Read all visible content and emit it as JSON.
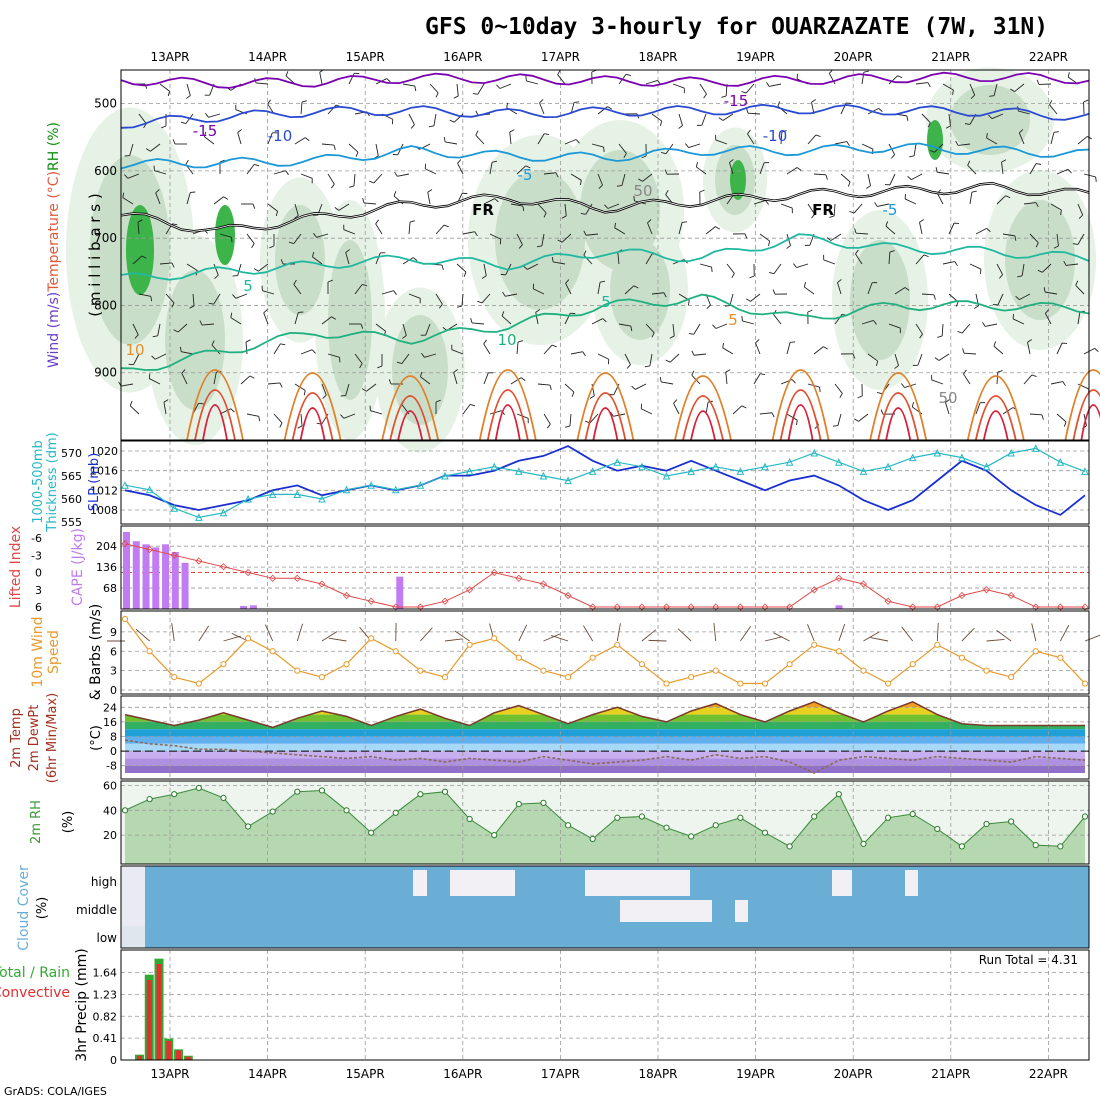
{
  "title": "GFS 0~10day 3-hourly for OUARZAZATE (7W, 31N)",
  "footer": "GrADS: COLA/IGES",
  "colors": {
    "temperature_cold": "#7a00b0",
    "temperature_warm": "#e0203a",
    "freezing_line": "#000000",
    "rh_fill": "#3cb44a",
    "slp": "#1a2fd0",
    "thickness": "#26b8c4",
    "cape": "#c07cf0",
    "lifted_index": "#e04848",
    "wind10m": "#e89a2c",
    "rh2m": "#5ab25a",
    "cloud": "#6aaed6",
    "precip_total": "#34a834",
    "precip_conv": "#e03030"
  },
  "chart_data": [
    {
      "panel": "upper-air",
      "type": "contour",
      "ylabel_parts": [
        "Wind",
        " (m/s)",
        "Temperature",
        " (°C)",
        "RH",
        " (%)"
      ],
      "ylabel_units": "( m i l l i b a r s )",
      "yticks": [
        "500",
        "600",
        "700",
        "800",
        "900"
      ],
      "ylim": [
        1000,
        450
      ],
      "x": [
        "13APR",
        "14APR",
        "15APR",
        "16APR",
        "17APR",
        "18APR",
        "19APR",
        "20APR",
        "21APR",
        "22APR"
      ],
      "contour_labels": [
        "-15",
        "-15",
        "-10",
        "-10",
        "-5",
        "FR",
        "FR",
        "-5",
        "5",
        "5",
        "10",
        "5",
        "50",
        "50",
        "10"
      ],
      "isotherms": [
        {
          "label": "-15",
          "values_hpa": [
            465,
            470,
            468,
            462,
            463,
            466,
            468,
            465,
            462,
            460,
            464
          ]
        },
        {
          "label": "-10",
          "values_hpa": [
            530,
            520,
            512,
            510,
            515,
            512,
            510,
            508,
            510,
            512,
            520
          ]
        },
        {
          "label": "-5",
          "values_hpa": [
            590,
            588,
            585,
            570,
            578,
            580,
            570,
            570,
            565,
            570,
            575
          ]
        },
        {
          "label": "0",
          "values_hpa": [
            665,
            690,
            670,
            650,
            640,
            655,
            645,
            635,
            630,
            625,
            635
          ]
        },
        {
          "label": "5",
          "values_hpa": [
            760,
            750,
            740,
            730,
            740,
            720,
            730,
            700,
            715,
            720,
            730
          ]
        },
        {
          "label": "10",
          "values_hpa": [
            900,
            870,
            840,
            850,
            830,
            800,
            790,
            820,
            800,
            800,
            805
          ]
        }
      ]
    },
    {
      "panel": "sfc-pressure",
      "type": "line",
      "ylabel_left": [
        "1000-500mb",
        "Thickness (dm)"
      ],
      "ylabel_right": "SLP (mb)",
      "yticks_left": [
        "570",
        "565",
        "560",
        "555"
      ],
      "yticks_right": [
        "1020",
        "1016",
        "1012",
        "1008"
      ],
      "series": [
        {
          "name": "SLP (mb)",
          "values": [
            1012,
            1011,
            1009,
            1008,
            1009,
            1010,
            1012,
            1013,
            1011,
            1012,
            1013,
            1012,
            1013,
            1015,
            1015,
            1016,
            1018,
            1019,
            1021,
            1018,
            1016,
            1017,
            1016,
            1018,
            1016,
            1014,
            1012,
            1014,
            1015,
            1013,
            1010,
            1008,
            1010,
            1014,
            1018,
            1016,
            1012,
            1009,
            1007,
            1011
          ]
        },
        {
          "name": "1000-500mb Thickness (dm)",
          "values": [
            563,
            562,
            558,
            556,
            557,
            560,
            561,
            561,
            560,
            562,
            563,
            562,
            563,
            565,
            566,
            567,
            566,
            565,
            564,
            566,
            568,
            567,
            565,
            566,
            567,
            566,
            567,
            568,
            570,
            568,
            566,
            567,
            569,
            570,
            569,
            567,
            570,
            571,
            568,
            566
          ]
        }
      ]
    },
    {
      "panel": "cape",
      "type": "bar",
      "ylabel_left": "Lifted Index",
      "ylabel_right": "CAPE (J/kg)",
      "yticks_left": [
        "-6",
        "-3",
        "0",
        "3",
        "6"
      ],
      "yticks_right": [
        "204",
        "136",
        "68"
      ],
      "cape_bars": [
        {
          "t": 0.0,
          "v": 250
        },
        {
          "t": 0.1,
          "v": 220
        },
        {
          "t": 0.2,
          "v": 210
        },
        {
          "t": 0.3,
          "v": 200
        },
        {
          "t": 0.4,
          "v": 210
        },
        {
          "t": 0.5,
          "v": 185
        },
        {
          "t": 0.6,
          "v": 150
        },
        {
          "t": 1.2,
          "v": 10
        },
        {
          "t": 1.3,
          "v": 12
        },
        {
          "t": 2.8,
          "v": 105
        },
        {
          "t": 7.3,
          "v": 12
        }
      ],
      "lifted_index": [
        -5,
        -4,
        -3,
        -2,
        -1,
        0,
        1,
        1,
        2,
        4,
        5,
        6,
        6,
        5,
        3,
        0,
        1,
        2,
        4,
        6,
        6,
        6,
        6,
        6,
        6,
        6,
        6,
        6,
        3,
        1,
        2,
        5,
        6,
        6,
        4,
        3,
        4,
        6,
        6,
        6
      ]
    },
    {
      "panel": "wind10m",
      "type": "line",
      "ylabel": "10m Wind Speed & Barbs (m/s)",
      "yticks": [
        "9",
        "6",
        "3",
        "0"
      ],
      "values": [
        11,
        6,
        2,
        1,
        4,
        8,
        6,
        3,
        2,
        4,
        8,
        6,
        3,
        2,
        7,
        8,
        5,
        3,
        2,
        5,
        7,
        4,
        1,
        2,
        3,
        1,
        1,
        4,
        7,
        6,
        3,
        1,
        4,
        7,
        5,
        3,
        2,
        6,
        5,
        1
      ]
    },
    {
      "panel": "temp2m",
      "type": "area",
      "ylabel": "2m Temp 2m DewPt (6hr Min/Max) (°C)",
      "yticks": [
        "24",
        "16",
        "8",
        "0",
        "-8"
      ],
      "temperature": [
        20,
        17,
        14,
        17,
        21,
        17,
        13,
        18,
        22,
        19,
        14,
        19,
        23,
        18,
        14,
        21,
        25,
        20,
        15,
        20,
        24,
        19,
        16,
        22,
        26,
        20,
        16,
        22,
        27,
        21,
        16,
        22,
        27,
        20,
        15,
        14,
        14,
        14,
        14,
        14
      ],
      "dewpoint": [
        6,
        4,
        3,
        1,
        1,
        0,
        -1,
        -2,
        -3,
        -4,
        -3,
        -5,
        -4,
        -6,
        -4,
        -5,
        -6,
        -3,
        -5,
        -7,
        -6,
        -5,
        -3,
        -5,
        -2,
        -4,
        -3,
        -6,
        -12,
        -5,
        -3,
        -4,
        -5,
        -3,
        -4,
        -5,
        -6,
        -3,
        -4,
        -5
      ]
    },
    {
      "panel": "rh2m",
      "type": "area",
      "ylabel": "2m RH (%)",
      "yticks": [
        "60",
        "40",
        "20"
      ],
      "values": [
        40,
        49,
        53,
        58,
        50,
        27,
        39,
        55,
        56,
        40,
        22,
        38,
        53,
        55,
        33,
        20,
        45,
        46,
        28,
        17,
        34,
        35,
        26,
        19,
        28,
        34,
        22,
        11,
        35,
        53,
        13,
        34,
        37,
        25,
        11,
        29,
        31,
        12,
        11,
        35
      ]
    },
    {
      "panel": "cloud",
      "type": "heatmap",
      "ylabel": "Cloud Cover (%)",
      "levels": [
        "high",
        "middle",
        "low"
      ]
    },
    {
      "panel": "precip",
      "type": "bar",
      "ylabel_left": [
        "Total / Rain",
        "Convective"
      ],
      "ylabel_right": "3hr Precip (mm)",
      "yticks": [
        "1.64",
        "1.23",
        "0.82",
        "0.41",
        "0"
      ],
      "run_total": "Run Total = 4.31",
      "bars": [
        {
          "t": 0.0,
          "total": 0.1,
          "conv": 0.08
        },
        {
          "t": 0.1,
          "total": 1.6,
          "conv": 1.5
        },
        {
          "t": 0.2,
          "total": 1.9,
          "conv": 1.8
        },
        {
          "t": 0.3,
          "total": 0.4,
          "conv": 0.36
        },
        {
          "t": 0.4,
          "total": 0.2,
          "conv": 0.18
        },
        {
          "t": 0.5,
          "total": 0.08,
          "conv": 0.06
        }
      ]
    }
  ]
}
